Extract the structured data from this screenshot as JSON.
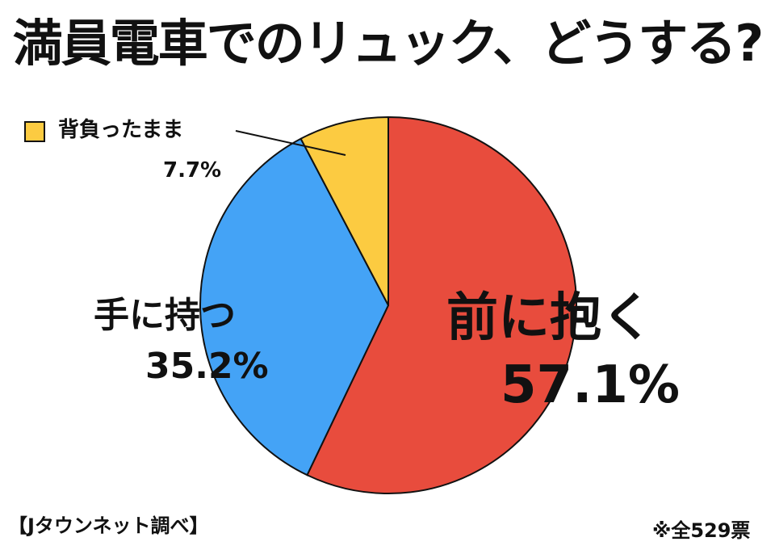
{
  "title": "満員電車でのリュック、どうする?",
  "source": "【Jタウンネット調べ】",
  "note": "※全529票",
  "colors": {
    "front": "#e84c3d",
    "hand": "#44a3f6",
    "back": "#fccb41",
    "outline": "#111111"
  },
  "chart_data": {
    "type": "pie",
    "title": "満員電車でのリュック、どうする?",
    "start_angle_deg": 0,
    "direction": "clockwise",
    "slices": [
      {
        "label": "前に抱く",
        "value": 57.1,
        "display": "57.1%"
      },
      {
        "label": "手に持つ",
        "value": 35.2,
        "display": "35.2%"
      },
      {
        "label": "背負ったまま",
        "value": 7.7,
        "display": "7.7%"
      }
    ],
    "legend": "top-left",
    "total_votes": 529
  }
}
